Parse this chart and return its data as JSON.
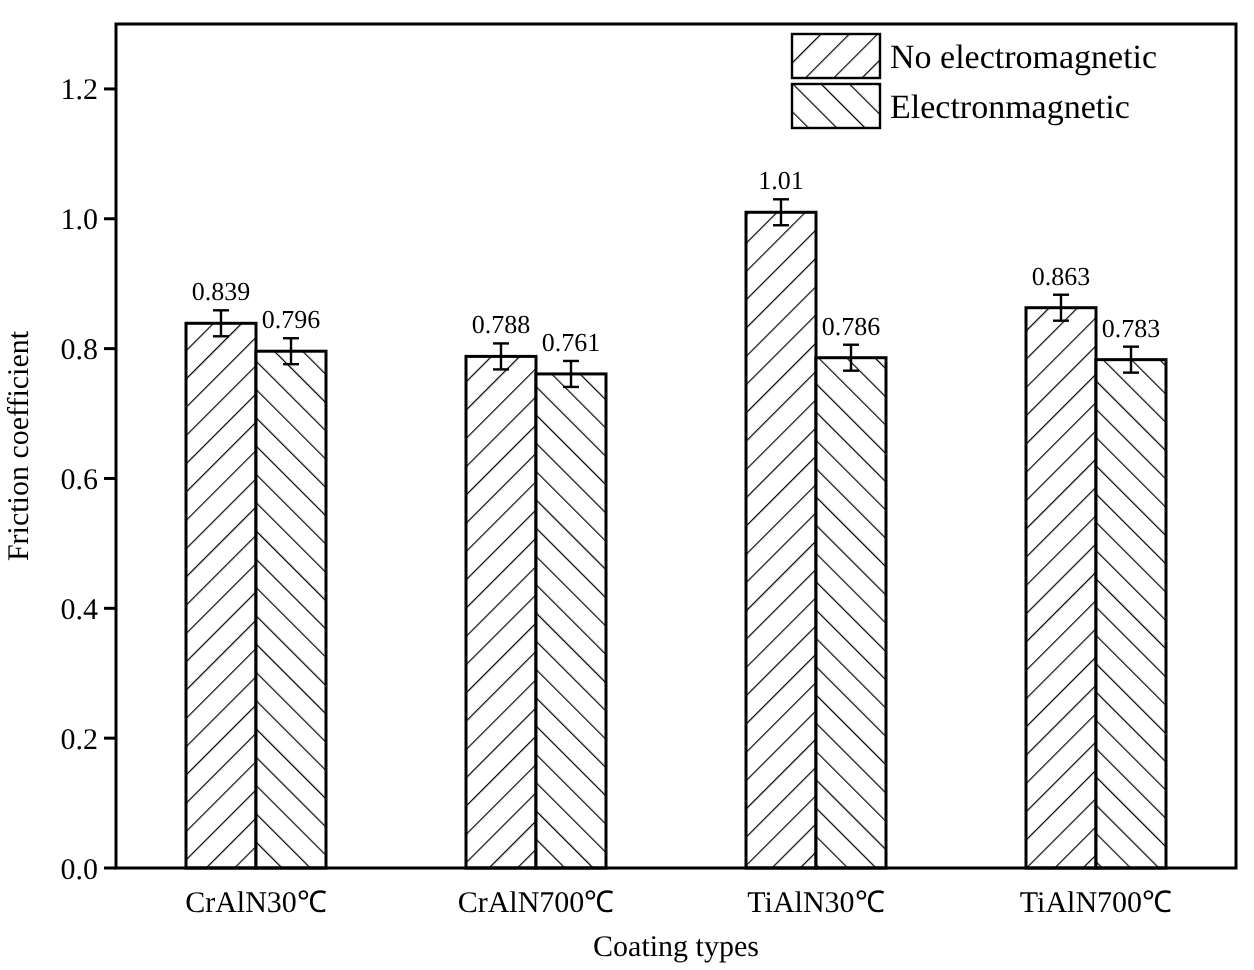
{
  "chart_data": {
    "type": "bar",
    "xlabel": "Coating types",
    "ylabel": "Friction coefficient",
    "categories": [
      "CrAlN30℃",
      "CrAlN700℃",
      "TiAlN30℃",
      "TiAlN700℃"
    ],
    "series": [
      {
        "name": "No electromagnetic",
        "color": "#000000",
        "values": [
          0.839,
          0.788,
          1.01,
          0.863
        ],
        "errors": [
          0.02,
          0.02,
          0.02,
          0.02
        ]
      },
      {
        "name": "Electronmagnetic",
        "color": "#000000",
        "values": [
          0.796,
          0.761,
          0.786,
          0.783
        ],
        "errors": [
          0.02,
          0.02,
          0.02,
          0.02
        ]
      }
    ],
    "data_labels": true,
    "ylim": [
      0,
      1.3
    ],
    "yticks": [
      {
        "value": 0,
        "label": "0.0"
      },
      {
        "value": 0.2,
        "label": "0.2"
      },
      {
        "value": 0.4,
        "label": "0.4"
      },
      {
        "value": 0.6,
        "label": "0.6"
      },
      {
        "value": 0.8,
        "label": "0.8"
      },
      {
        "value": 1.0,
        "label": "1.0"
      },
      {
        "value": 1.2,
        "label": "1.2"
      }
    ],
    "legend": "top right",
    "grid": false
  }
}
